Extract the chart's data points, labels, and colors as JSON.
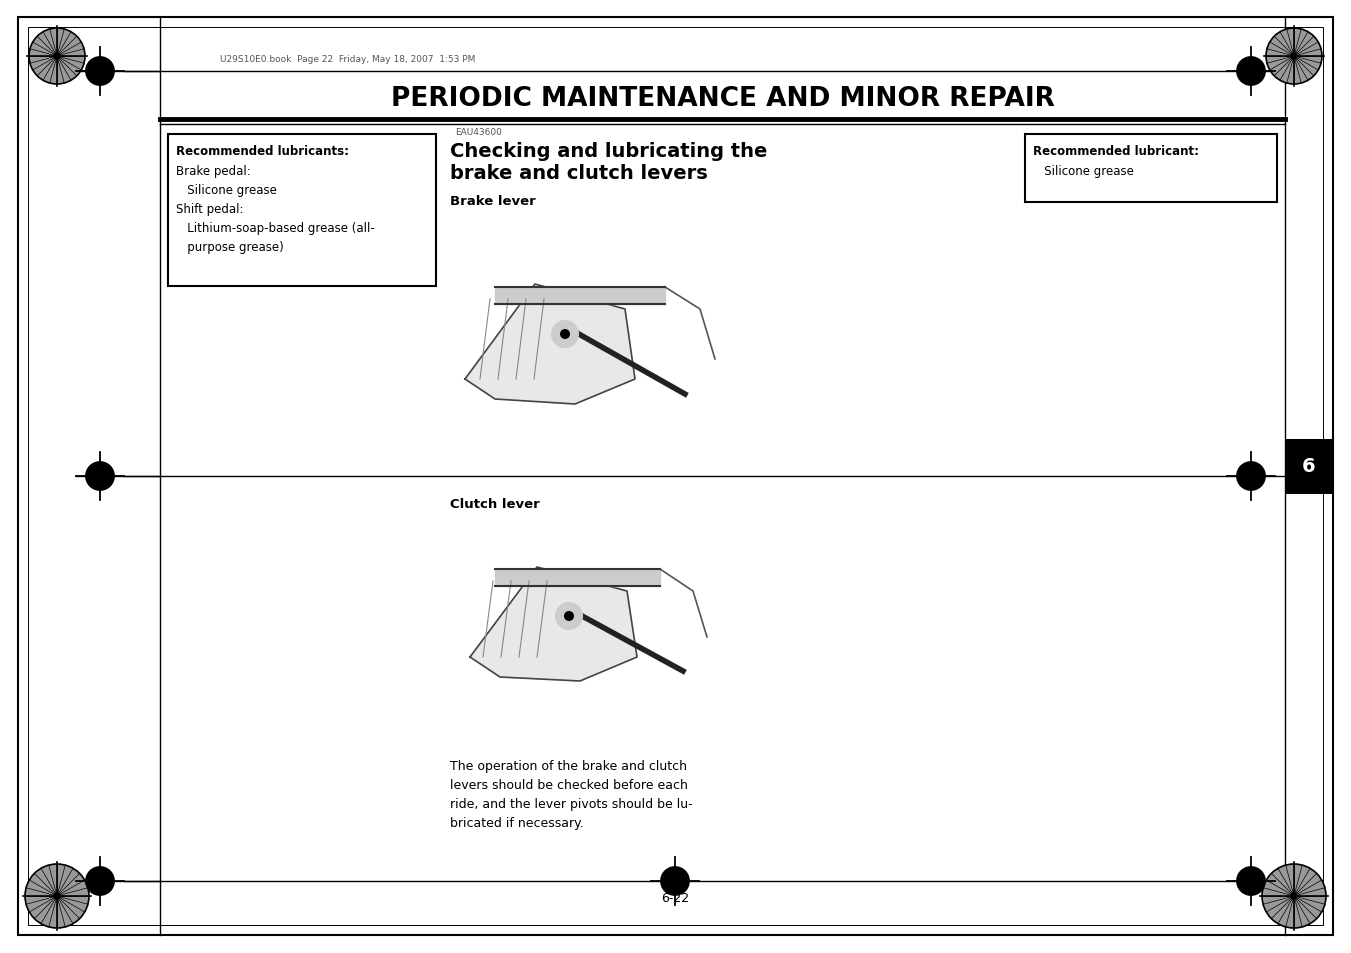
{
  "bg_color": "#ffffff",
  "title": "PERIODIC MAINTENANCE AND MINOR REPAIR",
  "header_small_text": "U29S10E0.book  Page 22  Friday, May 18, 2007  1:53 PM",
  "left_box_title": "Recommended lubricants:",
  "left_box_lines": [
    "Brake pedal:",
    "   Silicone grease",
    "Shift pedal:",
    "   Lithium-soap-based grease (all-",
    "   purpose grease)"
  ],
  "right_box_title": "Recommended lubricant:",
  "right_box_lines": [
    "   Silicone grease"
  ],
  "eau_code": "EAU43600",
  "section_title_line1": "Checking and lubricating the",
  "section_title_line2": "brake and clutch levers",
  "brake_lever_label": "Brake lever",
  "clutch_lever_label": "Clutch lever",
  "body_text_lines": [
    "The operation of the brake and clutch",
    "levers should be checked before each",
    "ride, and the lever pivots should be lu-",
    "bricated if necessary."
  ],
  "page_number": "6-22",
  "tab_number": "6",
  "tab_color": "#000000",
  "tab_text_color": "#ffffff"
}
